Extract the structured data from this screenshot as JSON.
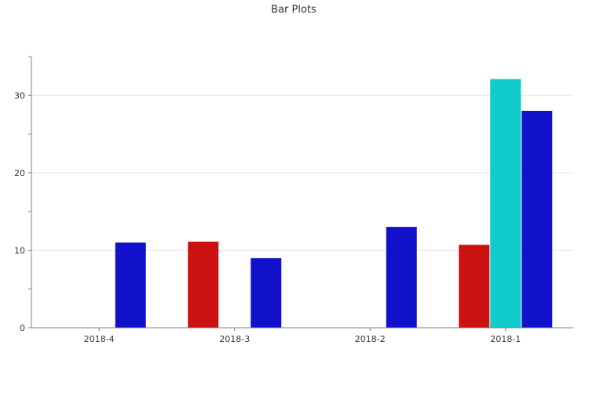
{
  "chart_data": {
    "type": "bar",
    "title": "Bar Plots",
    "xlabel": "",
    "ylabel": "",
    "categories": [
      "2018-4",
      "2018-3",
      "2018-2",
      "2018-1"
    ],
    "series": [
      {
        "color": "#cc1111",
        "values": [
          0,
          11.1,
          0,
          10.7
        ]
      },
      {
        "color": "#11cccc",
        "values": [
          0,
          0,
          0,
          32.1
        ]
      },
      {
        "color": "#1111cc",
        "values": [
          11,
          9,
          13,
          28
        ]
      }
    ],
    "ylim": [
      0,
      35
    ],
    "yticks": [
      0,
      10,
      20,
      30
    ],
    "grid": true,
    "legend": "none"
  }
}
